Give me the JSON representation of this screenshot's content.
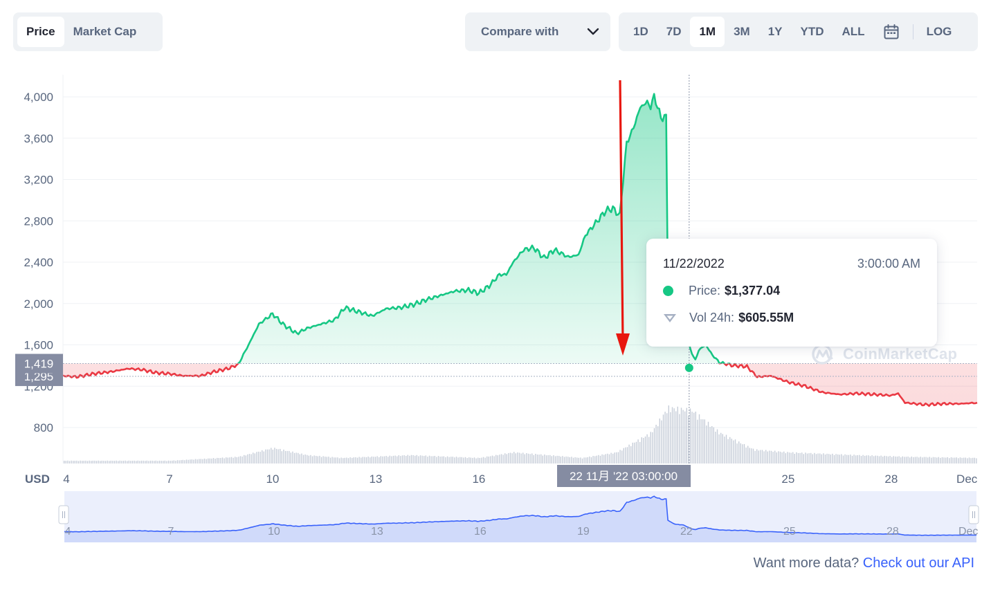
{
  "toolbar": {
    "metric_tabs": [
      {
        "label": "Price",
        "active": true
      },
      {
        "label": "Market Cap",
        "active": false
      }
    ],
    "compare_label": "Compare with",
    "ranges": [
      {
        "label": "1D",
        "active": false
      },
      {
        "label": "7D",
        "active": false
      },
      {
        "label": "1M",
        "active": true
      },
      {
        "label": "3M",
        "active": false
      },
      {
        "label": "1Y",
        "active": false
      },
      {
        "label": "YTD",
        "active": false
      },
      {
        "label": "ALL",
        "active": false
      }
    ],
    "log_label": "LOG",
    "calendar_icon": "calendar-icon",
    "dropdown_icon": "chevron-down-icon"
  },
  "tooltip": {
    "date": "11/22/2022",
    "time": "3:00:00 AM",
    "price_label": "Price:",
    "price_value": "$1,377.04",
    "vol_label": "Vol 24h:",
    "vol_value": "$605.55M"
  },
  "crosshair": {
    "x_label": "22 11月 '22  03:00:00",
    "price_marker": "1,419",
    "price_marker_2": "1,295"
  },
  "currency_label": "USD",
  "watermark": "CoinMarketCap",
  "footer": {
    "text": "Want more data?",
    "link": "Check out our API"
  },
  "colors": {
    "up": "#16c784",
    "down": "#ea3943",
    "arrow": "#e8170f",
    "navigator": "#3861fb"
  },
  "chart_data": {
    "type": "area",
    "ylabel": "USD",
    "ylim": [
      750,
      4150
    ],
    "yticks": [
      4000,
      3600,
      3200,
      2800,
      2400,
      2000,
      1600,
      1200,
      800
    ],
    "ytick_labels": [
      "4,000",
      "3,600",
      "3,200",
      "2,800",
      "2,400",
      "2,000",
      "1,600",
      "1,200",
      "800"
    ],
    "xlim": [
      3.9,
      30.5
    ],
    "xticks": [
      4,
      7,
      10,
      13,
      16,
      19,
      22,
      25,
      28,
      30
    ],
    "xtick_labels": [
      "4",
      "7",
      "10",
      "13",
      "16",
      "19",
      "22",
      "25",
      "28",
      "Dec"
    ],
    "navigator_tick_labels": [
      "4",
      "7",
      "10",
      "13",
      "16",
      "19",
      "22",
      "25",
      "28",
      "Dec"
    ],
    "series": [
      {
        "color_up": "#16c784",
        "color_down": "#ea3943",
        "baseline": 1419,
        "points": [
          [
            3.9,
            1300
          ],
          [
            4.3,
            1290
          ],
          [
            4.8,
            1320
          ],
          [
            5.3,
            1340
          ],
          [
            5.8,
            1370
          ],
          [
            6.2,
            1360
          ],
          [
            6.6,
            1330
          ],
          [
            7.0,
            1320
          ],
          [
            7.4,
            1300
          ],
          [
            7.9,
            1300
          ],
          [
            8.3,
            1340
          ],
          [
            8.7,
            1370
          ],
          [
            9.0,
            1410
          ],
          [
            9.3,
            1600
          ],
          [
            9.6,
            1800
          ],
          [
            10.0,
            1900
          ],
          [
            10.3,
            1800
          ],
          [
            10.7,
            1710
          ],
          [
            11.0,
            1760
          ],
          [
            11.4,
            1800
          ],
          [
            11.8,
            1840
          ],
          [
            12.1,
            1960
          ],
          [
            12.5,
            1920
          ],
          [
            12.9,
            1880
          ],
          [
            13.3,
            1950
          ],
          [
            13.7,
            1960
          ],
          [
            14.1,
            1990
          ],
          [
            14.5,
            2040
          ],
          [
            14.9,
            2080
          ],
          [
            15.3,
            2120
          ],
          [
            15.7,
            2130
          ],
          [
            16.0,
            2100
          ],
          [
            16.3,
            2170
          ],
          [
            16.6,
            2280
          ],
          [
            16.8,
            2280
          ],
          [
            17.0,
            2400
          ],
          [
            17.3,
            2520
          ],
          [
            17.6,
            2540
          ],
          [
            17.9,
            2440
          ],
          [
            18.2,
            2520
          ],
          [
            18.6,
            2450
          ],
          [
            18.9,
            2470
          ],
          [
            19.1,
            2660
          ],
          [
            19.4,
            2780
          ],
          [
            19.7,
            2900
          ],
          [
            19.9,
            2920
          ],
          [
            20.1,
            2850
          ],
          [
            20.3,
            3550
          ],
          [
            20.5,
            3700
          ],
          [
            20.7,
            3900
          ],
          [
            20.9,
            3950
          ],
          [
            21.0,
            3900
          ],
          [
            21.1,
            4010
          ],
          [
            21.2,
            3900
          ],
          [
            21.3,
            3800
          ],
          [
            21.45,
            3800
          ],
          [
            21.5,
            2200
          ],
          [
            21.6,
            2000
          ],
          [
            21.75,
            1850
          ],
          [
            21.9,
            1840
          ],
          [
            22.0,
            1760
          ],
          [
            22.15,
            1560
          ],
          [
            22.3,
            1450
          ],
          [
            22.4,
            1550
          ],
          [
            22.6,
            1600
          ],
          [
            22.8,
            1500
          ],
          [
            23.0,
            1430
          ],
          [
            23.4,
            1400
          ],
          [
            23.8,
            1390
          ],
          [
            24.1,
            1290
          ],
          [
            24.5,
            1300
          ],
          [
            25.0,
            1240
          ],
          [
            25.5,
            1200
          ],
          [
            26.0,
            1140
          ],
          [
            26.5,
            1120
          ],
          [
            27.0,
            1130
          ],
          [
            27.5,
            1120
          ],
          [
            28.0,
            1110
          ],
          [
            28.2,
            1130
          ],
          [
            28.4,
            1040
          ],
          [
            29.0,
            1020
          ],
          [
            29.5,
            1030
          ],
          [
            30.0,
            1030
          ],
          [
            30.5,
            1040
          ]
        ]
      }
    ],
    "volume_profile": [
      [
        3.9,
        0.05
      ],
      [
        7.0,
        0.05
      ],
      [
        9.0,
        0.12
      ],
      [
        10.0,
        0.28
      ],
      [
        11.0,
        0.15
      ],
      [
        12.0,
        0.1
      ],
      [
        14.0,
        0.15
      ],
      [
        16.0,
        0.1
      ],
      [
        17.0,
        0.2
      ],
      [
        18.0,
        0.15
      ],
      [
        19.0,
        0.1
      ],
      [
        20.0,
        0.2
      ],
      [
        21.0,
        0.55
      ],
      [
        21.5,
        1.0
      ],
      [
        22.2,
        0.95
      ],
      [
        23.0,
        0.55
      ],
      [
        24.0,
        0.25
      ],
      [
        25.0,
        0.2
      ],
      [
        27.0,
        0.15
      ],
      [
        28.5,
        0.12
      ],
      [
        30.5,
        0.1
      ]
    ],
    "crosshair_x": 22.12,
    "highlight_point": [
      22.12,
      1377.04
    ],
    "price_marker": 1419,
    "price_marker_2": 1295
  }
}
